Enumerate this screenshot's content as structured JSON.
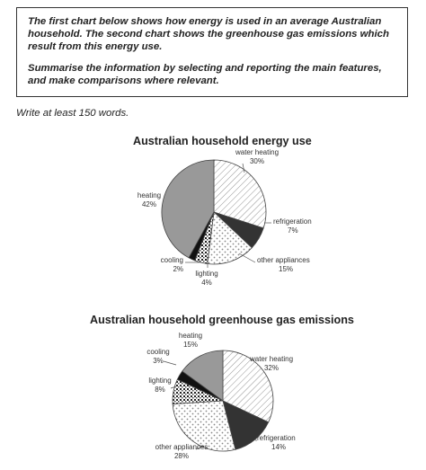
{
  "task": {
    "paragraph1": "The first chart below shows how energy is used in an average Australian household. The second chart shows the greenhouse gas emissions which result from this energy use.",
    "paragraph2": "Summarise the information by selecting and reporting the main features, and make comparisons where relevant."
  },
  "instruction": "Write at least 150 words.",
  "chart_data": [
    {
      "type": "pie",
      "title": "Australian household energy use",
      "slices": [
        {
          "label": "water heating",
          "value": 30,
          "value_label": "30%",
          "fill": "hatch"
        },
        {
          "label": "refrigeration",
          "value": 7,
          "value_label": "7%",
          "fill": "dark"
        },
        {
          "label": "other appliances",
          "value": 15,
          "value_label": "15%",
          "fill": "dots"
        },
        {
          "label": "lighting",
          "value": 4,
          "value_label": "4%",
          "fill": "speckle"
        },
        {
          "label": "cooling",
          "value": 2,
          "value_label": "2%",
          "fill": "black"
        },
        {
          "label": "heating",
          "value": 42,
          "value_label": "42%",
          "fill": "grey"
        }
      ]
    },
    {
      "type": "pie",
      "title": "Australian household greenhouse gas emissions",
      "slices": [
        {
          "label": "water heating",
          "value": 32,
          "value_label": "32%",
          "fill": "hatch"
        },
        {
          "label": "refrigeration",
          "value": 14,
          "value_label": "14%",
          "fill": "dark"
        },
        {
          "label": "other appliances",
          "value": 28,
          "value_label": "28%",
          "fill": "dots"
        },
        {
          "label": "lighting",
          "value": 8,
          "value_label": "8%",
          "fill": "speckle"
        },
        {
          "label": "cooling",
          "value": 3,
          "value_label": "3%",
          "fill": "black"
        },
        {
          "label": "heating",
          "value": 15,
          "value_label": "15%",
          "fill": "grey"
        }
      ]
    }
  ]
}
